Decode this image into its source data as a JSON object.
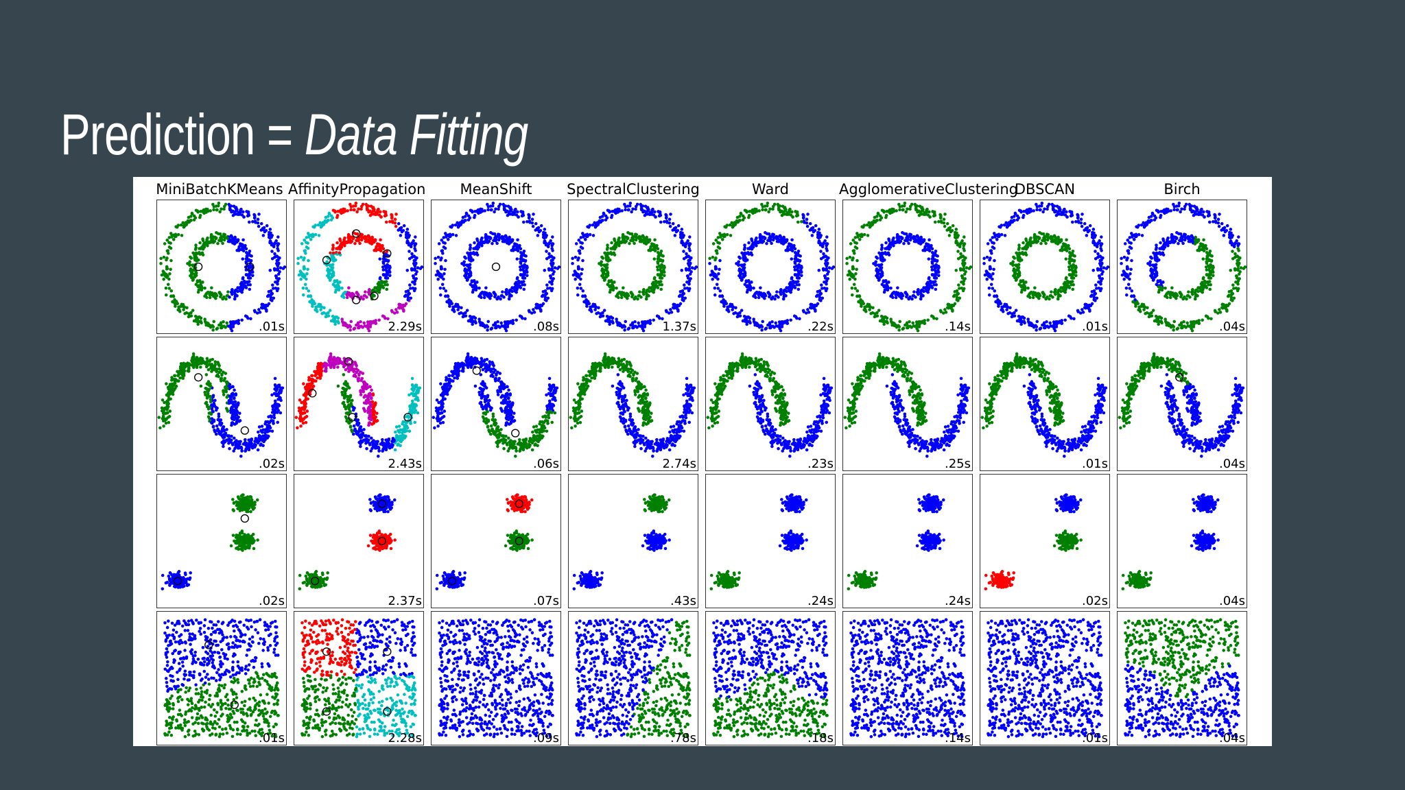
{
  "slide": {
    "title_plain": "Prediction = ",
    "title_italic": "Data Fitting"
  },
  "chart_data": {
    "type": "scatter",
    "algorithms": [
      "MiniBatchKMeans",
      "AffinityPropagation",
      "MeanShift",
      "SpectralClustering",
      "Ward",
      "AgglomerativeClustering",
      "DBSCAN",
      "Birch"
    ],
    "datasets": [
      "circles",
      "moons",
      "blobs",
      "uniform"
    ],
    "colors": {
      "blue": "#0000ff",
      "green": "#008000",
      "red": "#ff0000",
      "cyan": "#00bfbf",
      "magenta": "#bf00bf",
      "black": "#000000"
    },
    "times": [
      [
        ".01s",
        "2.29s",
        ".08s",
        "1.37s",
        ".22s",
        ".14s",
        ".01s",
        ".04s"
      ],
      [
        ".02s",
        "2.43s",
        ".06s",
        "2.74s",
        ".23s",
        ".25s",
        ".01s",
        ".04s"
      ],
      [
        ".02s",
        "2.37s",
        ".07s",
        ".43s",
        ".24s",
        ".24s",
        ".02s",
        ".04s"
      ],
      [
        ".01s",
        "2.28s",
        ".09s",
        ".78s",
        ".18s",
        ".14s",
        ".01s",
        ".04s"
      ]
    ]
  }
}
